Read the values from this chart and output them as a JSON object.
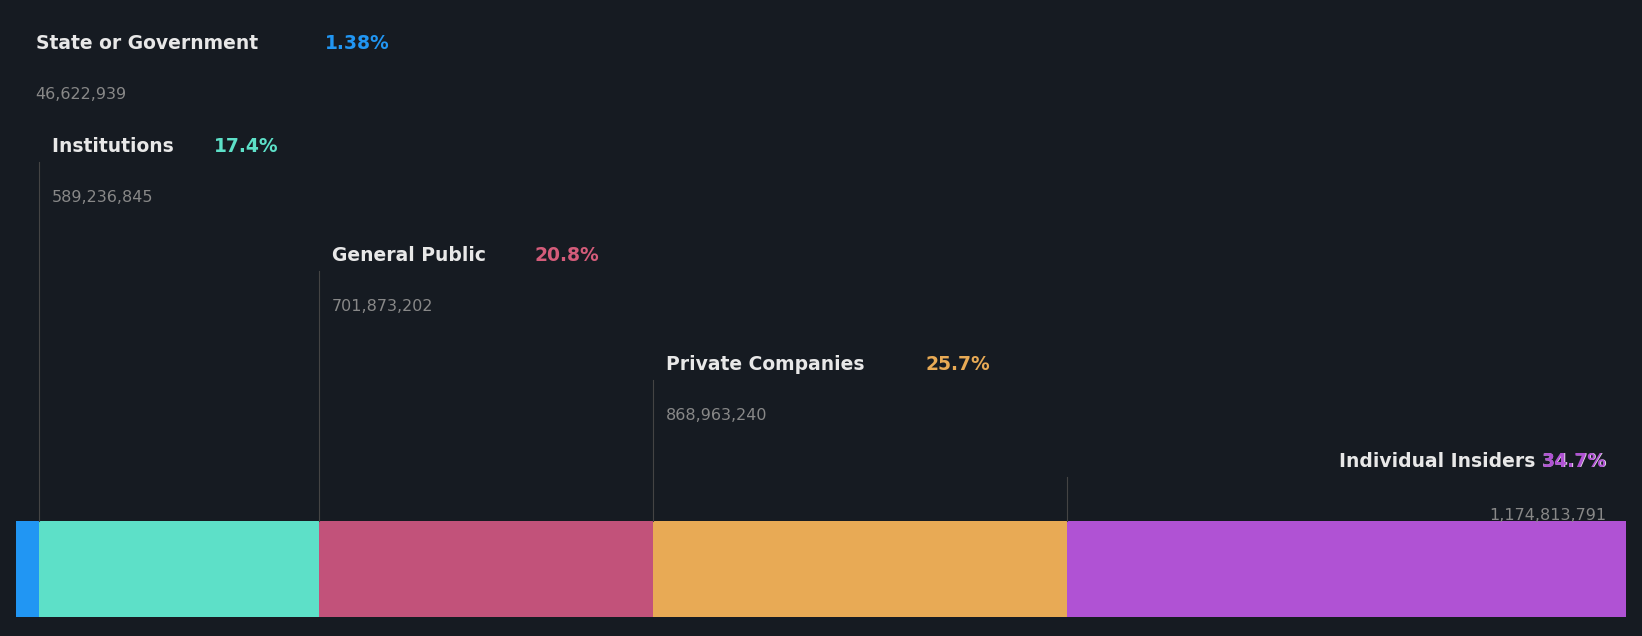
{
  "segments": [
    {
      "label": "State or Government",
      "pct": "1.38%",
      "value": "46,622,939",
      "pct_val": 1.38,
      "color": "#2196F3",
      "bar_color": "#5DE0C8"
    },
    {
      "label": "Institutions",
      "pct": "17.4%",
      "value": "589,236,845",
      "pct_val": 17.4,
      "color": "#5DE0C8",
      "bar_color": "#C2527A"
    },
    {
      "label": "General Public",
      "pct": "20.8%",
      "value": "701,873,202",
      "pct_val": 20.8,
      "color": "#D45C7A",
      "bar_color": "#E8AA55"
    },
    {
      "label": "Private Companies",
      "pct": "25.7%",
      "value": "868,963,240",
      "pct_val": 25.7,
      "color": "#E8AA55",
      "bar_color": "#B052D4"
    },
    {
      "label": "Individual Insiders",
      "pct": "34.7%",
      "value": "1,174,813,791",
      "pct_val": 34.7,
      "color": "#B052D4",
      "bar_color": "#B052D4"
    }
  ],
  "bar_colors": [
    "#5DE0C8",
    "#C2527A",
    "#E8AA55",
    "#B052D4"
  ],
  "background_color": "#161B22",
  "text_color_white": "#E8E8E8",
  "text_color_gray": "#888888",
  "divider_color": "#444444",
  "label_fontsize": 13.5,
  "value_fontsize": 11.5
}
